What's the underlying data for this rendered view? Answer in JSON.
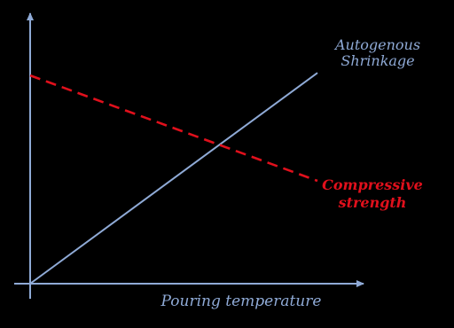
{
  "chart_data": {
    "type": "line",
    "xlabel": "Pouring temperature",
    "ylabel": "",
    "x": [
      0,
      1
    ],
    "series": [
      {
        "name": "Autogenous Shrinkage",
        "label_lines": [
          "Autogenous",
          "Shrinkage"
        ],
        "values": [
          0.0,
          0.82
        ],
        "color": "#8faad6",
        "style": "solid"
      },
      {
        "name": "Compressive strength",
        "label_lines": [
          "Compressive",
          "strength"
        ],
        "values": [
          0.81,
          0.4
        ],
        "color": "#e0101c",
        "style": "dashed"
      }
    ],
    "xlim": [
      0,
      1
    ],
    "ylim": [
      0,
      1
    ],
    "grid": false,
    "legend": "inline labels at line ends",
    "axis_color": "#8faad6",
    "background": "#000000"
  }
}
